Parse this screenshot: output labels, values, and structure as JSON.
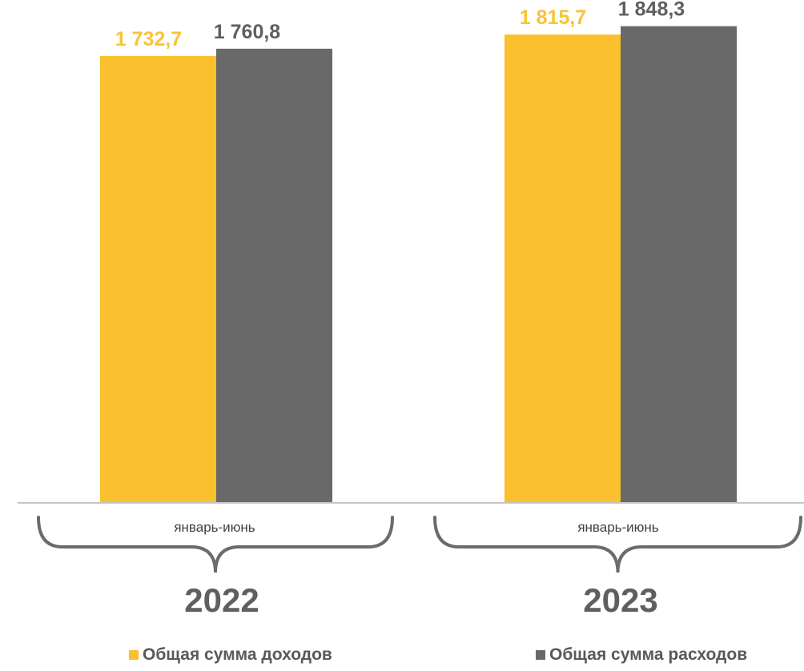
{
  "chart_data": {
    "type": "bar",
    "groups": [
      {
        "category": "январь-июнь",
        "year": "2022"
      },
      {
        "category": "январь-июнь",
        "year": "2023"
      }
    ],
    "series": [
      {
        "name": "Общая сумма доходов",
        "color": "#fbc02d",
        "label_color": "#f9c334",
        "values": [
          1732.7,
          1815.7
        ],
        "labels": [
          "1 732,7",
          "1 815,7"
        ]
      },
      {
        "name": "Общая сумма расходов",
        "color": "#696969",
        "label_color": "#5f5f5f",
        "values": [
          1760.8,
          1848.3
        ],
        "labels": [
          "1 760,8",
          "1 848,3"
        ]
      }
    ],
    "ylim": [
      0,
      1950
    ],
    "grid": false,
    "legend_position": "bottom"
  }
}
